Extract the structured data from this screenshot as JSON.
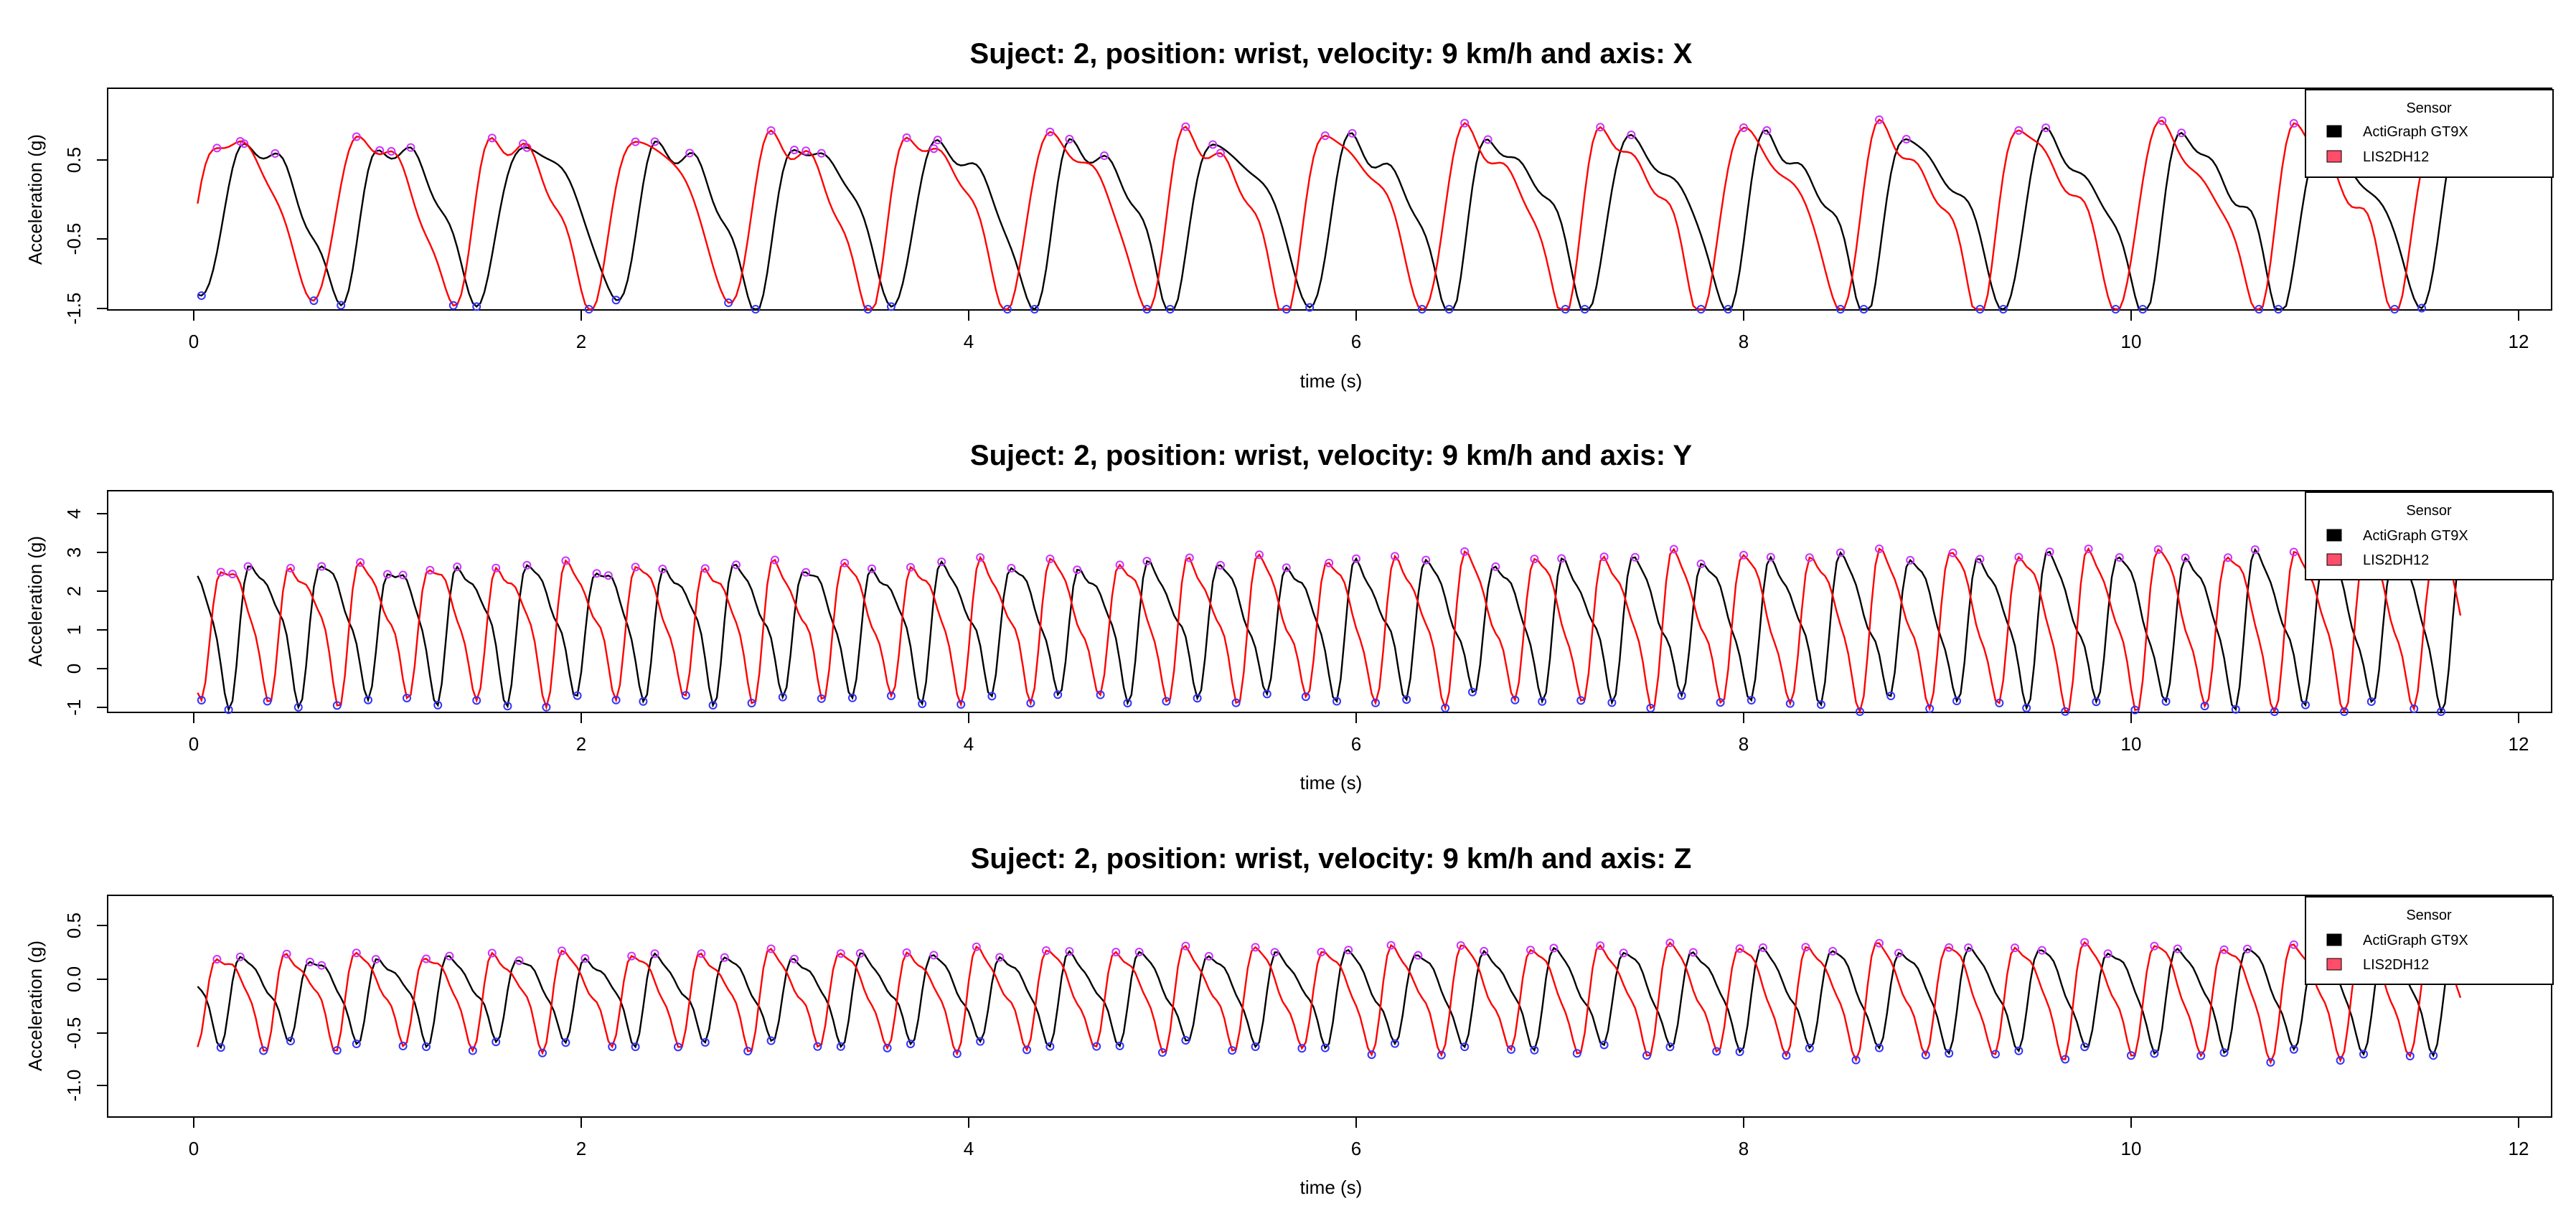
{
  "chart_data": [
    {
      "type": "line",
      "title": "Suject: 2, position: wrist, velocity: 9 km/h and axis: X",
      "xlabel": "time (s)",
      "ylabel": "Acceleration (g)",
      "xlim": [
        -0.4,
        12.2
      ],
      "ylim": [
        -1.5,
        1.2
      ],
      "x_ticks": [
        "0",
        "2",
        "4",
        "6",
        "8",
        "10",
        "12"
      ],
      "y_ticks": [
        "-1.5",
        "-0.5",
        "0.5"
      ],
      "legend": {
        "title": "Sensor",
        "entries": [
          "ActiGraph GT9X",
          "LIS2DH12"
        ],
        "position": "top-right"
      },
      "series": [
        {
          "name": "ActiGraph GT9X",
          "color": "#000000",
          "period": 0.715,
          "phase": 0.18,
          "amplitude": 1.05,
          "offset": -0.25,
          "x_start": 0.02,
          "x_end": 11.7
        },
        {
          "name": "LIS2DH12",
          "color": "#ff0000",
          "period": 0.715,
          "phase": 0.05,
          "amplitude": 1.1,
          "offset": -0.2,
          "x_start": 0.02,
          "x_end": 11.7
        }
      ],
      "peak_marker_color": "#cc33ff",
      "trough_marker_color": "#3333ff"
    },
    {
      "type": "line",
      "title": "Suject: 2, position: wrist, velocity: 9 km/h and axis: Y",
      "xlabel": "time (s)",
      "ylabel": "Acceleration (g)",
      "xlim": [
        -0.4,
        12.2
      ],
      "ylim": [
        -1.1,
        4.5
      ],
      "x_ticks": [
        "0",
        "2",
        "4",
        "6",
        "8",
        "10",
        "12"
      ],
      "y_ticks": [
        "-1",
        "0",
        "1",
        "2",
        "3",
        "4"
      ],
      "legend": {
        "title": "Sensor",
        "entries": [
          "ActiGraph GT9X",
          "LIS2DH12"
        ],
        "position": "top-right"
      },
      "series": [
        {
          "name": "ActiGraph GT9X",
          "color": "#000000",
          "period": 0.357,
          "phase": 0.25,
          "amplitude": 1.9,
          "offset": 1.25,
          "x_start": 0.02,
          "x_end": 11.7
        },
        {
          "name": "LIS2DH12",
          "color": "#ff0000",
          "period": 0.357,
          "phase": 0.1,
          "amplitude": 1.95,
          "offset": 1.25,
          "x_start": 0.02,
          "x_end": 11.7
        }
      ],
      "peak_marker_color": "#cc33ff",
      "trough_marker_color": "#3333ff"
    },
    {
      "type": "line",
      "title": "Suject: 2, position: wrist, velocity: 9 km/h and axis: Z",
      "xlabel": "time (s)",
      "ylabel": "Acceleration (g)",
      "xlim": [
        -0.4,
        12.2
      ],
      "ylim": [
        -1.3,
        0.75
      ],
      "x_ticks": [
        "0",
        "2",
        "4",
        "6",
        "8",
        "10",
        "12"
      ],
      "y_ticks": [
        "-1.0",
        "-0.5",
        "0.0",
        "0.5"
      ],
      "legend": {
        "title": "Sensor",
        "entries": [
          "ActiGraph GT9X",
          "LIS2DH12"
        ],
        "position": "top-right"
      },
      "series": [
        {
          "name": "ActiGraph GT9X",
          "color": "#000000",
          "period": 0.357,
          "phase": 0.2,
          "amplitude": 0.45,
          "offset": -0.15,
          "x_start": 0.02,
          "x_end": 11.7
        },
        {
          "name": "LIS2DH12",
          "color": "#ff0000",
          "period": 0.357,
          "phase": 0.08,
          "amplitude": 0.5,
          "offset": -0.15,
          "x_start": 0.02,
          "x_end": 11.7
        }
      ],
      "peak_marker_color": "#cc33ff",
      "trough_marker_color": "#3333ff"
    }
  ]
}
